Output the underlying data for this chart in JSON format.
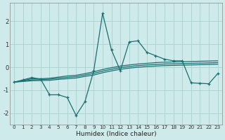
{
  "xlabel": "Humidex (Indice chaleur)",
  "bg_color": "#ceeaea",
  "grid_color": "#aed4d4",
  "line_color": "#1a7070",
  "x_data": [
    0,
    1,
    2,
    3,
    4,
    5,
    6,
    7,
    8,
    9,
    10,
    11,
    12,
    13,
    14,
    15,
    16,
    17,
    18,
    19,
    20,
    21,
    22,
    23
  ],
  "main_line": [
    -0.65,
    -0.55,
    -0.45,
    -0.52,
    -1.2,
    -1.2,
    -1.32,
    -2.1,
    -1.5,
    -0.15,
    2.35,
    0.75,
    -0.15,
    1.1,
    1.15,
    0.65,
    0.5,
    0.35,
    0.28,
    0.28,
    -0.68,
    -0.7,
    -0.72,
    -0.28
  ],
  "trend1": [
    -0.65,
    -0.58,
    -0.5,
    -0.5,
    -0.48,
    -0.43,
    -0.38,
    -0.35,
    -0.28,
    -0.2,
    -0.1,
    -0.02,
    0.05,
    0.1,
    0.14,
    0.17,
    0.2,
    0.22,
    0.23,
    0.24,
    0.25,
    0.26,
    0.27,
    0.28
  ],
  "trend2": [
    -0.65,
    -0.6,
    -0.55,
    -0.54,
    -0.52,
    -0.48,
    -0.44,
    -0.41,
    -0.34,
    -0.27,
    -0.17,
    -0.09,
    -0.02,
    0.03,
    0.07,
    0.1,
    0.12,
    0.14,
    0.15,
    0.16,
    0.17,
    0.18,
    0.19,
    0.2
  ],
  "trend3": [
    -0.65,
    -0.62,
    -0.59,
    -0.58,
    -0.57,
    -0.53,
    -0.5,
    -0.47,
    -0.4,
    -0.34,
    -0.24,
    -0.16,
    -0.09,
    -0.04,
    0.0,
    0.03,
    0.05,
    0.07,
    0.08,
    0.09,
    0.1,
    0.11,
    0.12,
    0.13
  ],
  "ylim": [
    -2.5,
    2.8
  ],
  "yticks": [
    -2,
    -1,
    0,
    1,
    2
  ],
  "xticks": [
    0,
    1,
    2,
    3,
    4,
    5,
    6,
    7,
    8,
    9,
    10,
    11,
    12,
    13,
    14,
    15,
    16,
    17,
    18,
    19,
    20,
    21,
    22,
    23
  ]
}
